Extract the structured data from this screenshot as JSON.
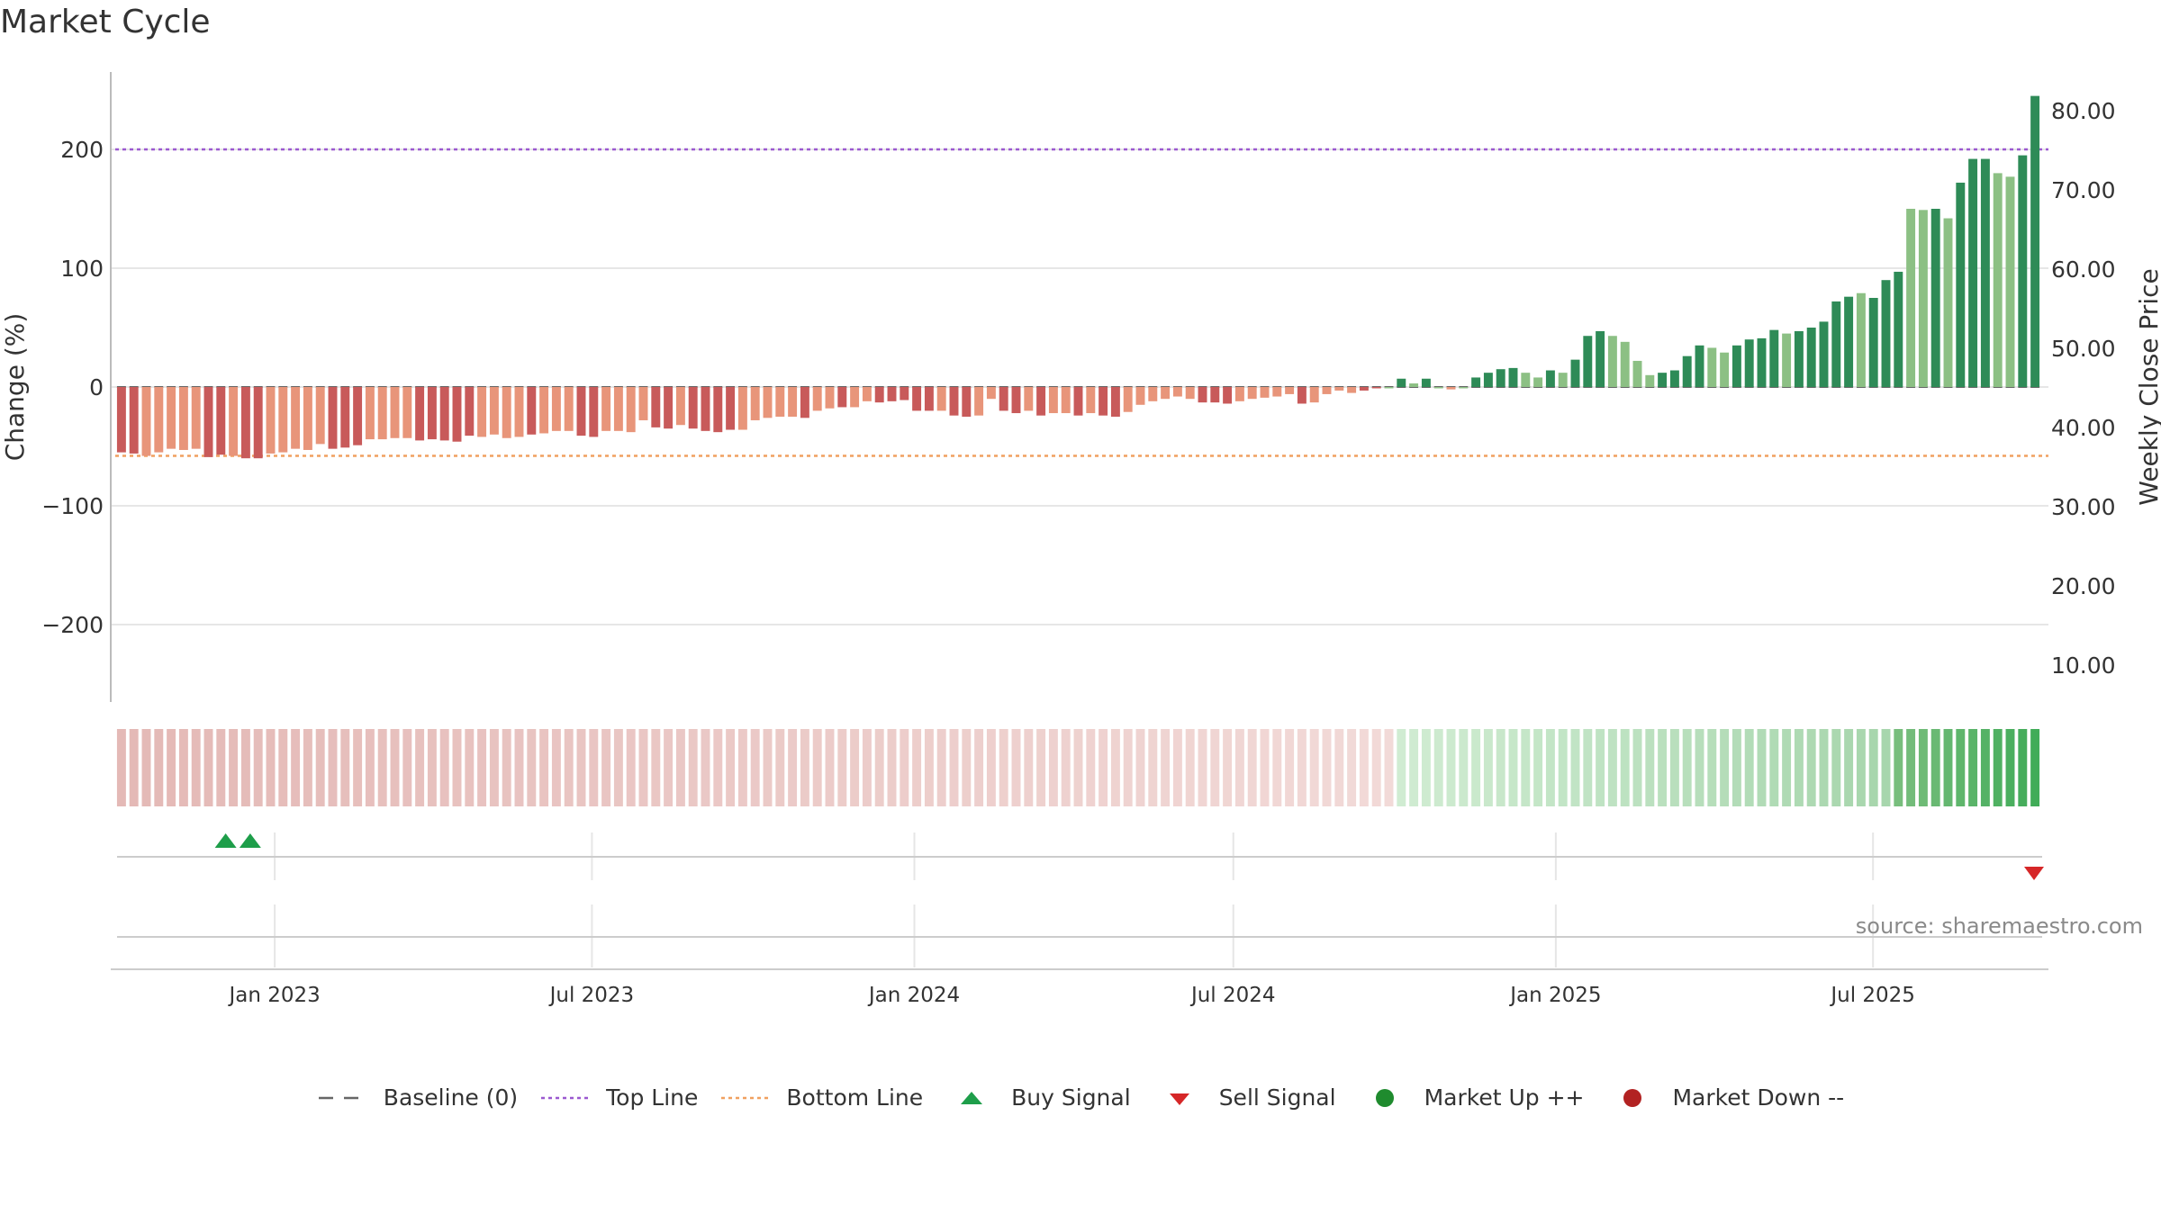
{
  "title": "Market Cycle",
  "source": "source: sharemaestro.com",
  "colors": {
    "axis_text": "#333333",
    "grid": "#e6e6e6",
    "baseline": "#666666",
    "top_line": "#9b59d0",
    "bottom_line": "#f0a060",
    "neg_dark": "#c85a5a",
    "neg_light": "#e8957a",
    "pos_dark": "#2e8b57",
    "pos_light": "#8cc084",
    "buy": "#1e9e4a",
    "sell": "#d62728",
    "up_dot": "#1f8b2e",
    "down_dot": "#b22222"
  },
  "legend": [
    {
      "label": "Baseline (0)",
      "icon": "dash-line",
      "color": "#666666"
    },
    {
      "label": "Top Line",
      "icon": "dotted-line",
      "color": "#9b59d0"
    },
    {
      "label": "Bottom Line",
      "icon": "dotted-line",
      "color": "#f0a060"
    },
    {
      "label": "Buy Signal",
      "icon": "triangle-up",
      "color": "#1e9e4a"
    },
    {
      "label": "Sell Signal",
      "icon": "triangle-down",
      "color": "#d62728"
    },
    {
      "label": "Market Up ++",
      "icon": "circle",
      "color": "#1f8b2e"
    },
    {
      "label": "Market Down --",
      "icon": "circle",
      "color": "#b22222"
    }
  ],
  "chart_data": {
    "type": "bar",
    "title": "Market Cycle",
    "ylabel": "Change (%)",
    "y2label": "Weekly Close Price",
    "ylim": [
      -265,
      265
    ],
    "yticks": [
      200,
      100,
      0,
      -100,
      -200
    ],
    "ytick_labels": [
      "200",
      "100",
      "0",
      "−100",
      "−200"
    ],
    "y2ticks": [
      80,
      70,
      60,
      50,
      40,
      30,
      20,
      10
    ],
    "y2tick_labels": [
      "80.00",
      "70.00",
      "60.00",
      "50.00",
      "40.00",
      "30.00",
      "20.00",
      "10.00"
    ],
    "y2lim": [
      5.3,
      84.3
    ],
    "top_line": 200,
    "bottom_line": -58,
    "baseline": 0,
    "grid": true,
    "x_start": "2022-10-02",
    "x_end": "2025-10-05",
    "xticks": [
      "Jan 2023",
      "Jul 2023",
      "Jan 2024",
      "Jul 2024",
      "Jan 2025",
      "Jul 2025"
    ],
    "xtick_dates": [
      "2023-01-01",
      "2023-07-01",
      "2024-01-01",
      "2024-07-01",
      "2025-01-01",
      "2025-07-01"
    ],
    "series": [
      {
        "values": [
          -55,
          -56,
          -58,
          -55,
          -52,
          -53,
          -52,
          -59,
          -57,
          -58,
          -60,
          -60,
          -56,
          -55,
          -52,
          -53,
          -48,
          -52,
          -51,
          -49,
          -44,
          -44,
          -43,
          -43,
          -45,
          -44,
          -45,
          -46,
          -41,
          -42,
          -40,
          -43,
          -42,
          -40,
          -39,
          -37,
          -37,
          -41,
          -42,
          -37,
          -37,
          -38,
          -28,
          -34,
          -35,
          -32,
          -35,
          -37,
          -38,
          -36,
          -36,
          -28,
          -26,
          -25,
          -25,
          -26,
          -20,
          -18,
          -17,
          -17,
          -12,
          -13,
          -12,
          -11,
          -20,
          -20,
          -20,
          -24,
          -25,
          -24,
          -10,
          -20,
          -22,
          -20,
          -24,
          -22,
          -22,
          -24,
          -22,
          -24,
          -25,
          -21,
          -15,
          -12,
          -10,
          -8,
          -10,
          -13,
          -13,
          -14,
          -12,
          -10,
          -9,
          -8,
          -6,
          -14,
          -13,
          -6,
          -3,
          -5,
          -3,
          -1,
          0,
          7,
          3,
          7,
          0,
          -2,
          0,
          8,
          12,
          15,
          16,
          12,
          8,
          14,
          12,
          23,
          43,
          47,
          43,
          38,
          22,
          10,
          12,
          14,
          26,
          35,
          33,
          29,
          35,
          40,
          41,
          48,
          45,
          47,
          50,
          55,
          72,
          76,
          79,
          75,
          90,
          97,
          150,
          149,
          150,
          142,
          172,
          192,
          192,
          180,
          177,
          195,
          245
        ],
        "fill": [
          "d",
          "d",
          "l",
          "l",
          "l",
          "l",
          "l",
          "d",
          "d",
          "l",
          "d",
          "d",
          "l",
          "l",
          "l",
          "l",
          "l",
          "d",
          "d",
          "d",
          "l",
          "l",
          "l",
          "l",
          "d",
          "d",
          "d",
          "d",
          "d",
          "l",
          "l",
          "l",
          "l",
          "d",
          "l",
          "l",
          "l",
          "d",
          "d",
          "l",
          "l",
          "l",
          "l",
          "d",
          "d",
          "l",
          "d",
          "d",
          "d",
          "d",
          "l",
          "l",
          "l",
          "l",
          "l",
          "d",
          "l",
          "l",
          "d",
          "l",
          "l",
          "d",
          "d",
          "d",
          "d",
          "d",
          "l",
          "d",
          "d",
          "l",
          "l",
          "d",
          "d",
          "l",
          "d",
          "l",
          "l",
          "d",
          "l",
          "d",
          "d",
          "l",
          "l",
          "l",
          "l",
          "l",
          "l",
          "d",
          "d",
          "d",
          "l",
          "l",
          "l",
          "l",
          "l",
          "d",
          "l",
          "l",
          "l",
          "l",
          "d",
          "d",
          "l",
          "d",
          "l",
          "d",
          "l",
          "l",
          "l",
          "d",
          "d",
          "d",
          "d",
          "l",
          "l",
          "d",
          "l",
          "d",
          "d",
          "d",
          "l",
          "l",
          "l",
          "l",
          "d",
          "d",
          "d",
          "d",
          "l",
          "l",
          "d",
          "d",
          "d",
          "d",
          "l",
          "d",
          "d",
          "d",
          "d",
          "d",
          "l",
          "d",
          "d",
          "d",
          "l",
          "l",
          "d",
          "l",
          "d",
          "d",
          "d",
          "l",
          "l",
          "d",
          "d"
        ]
      }
    ],
    "buy_signals": [
      "2022-12-04",
      "2022-12-18"
    ],
    "sell_signals": [
      "2025-10-05"
    ],
    "band_state": "neg_to_pos"
  },
  "labels": {
    "ylabel": "Change (%)",
    "y2label": "Weekly Close Price"
  }
}
